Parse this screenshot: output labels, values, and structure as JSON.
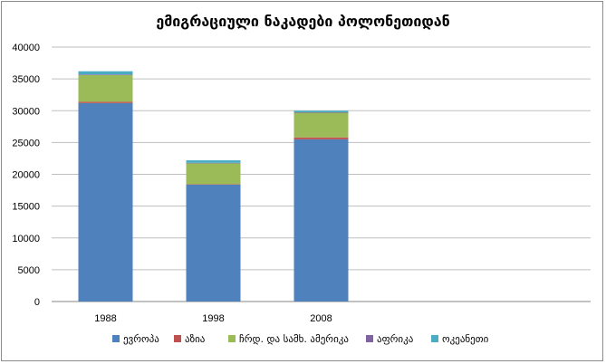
{
  "chart_data": {
    "type": "bar",
    "stacked": true,
    "title": "ემიგრაციული ნაკადები პოლონეთიდან",
    "xlabel": "",
    "ylabel": "",
    "categories": [
      "1988",
      "1998",
      "2008",
      "",
      ""
    ],
    "ylim": [
      0,
      40000
    ],
    "yticks": [
      0,
      5000,
      10000,
      15000,
      20000,
      25000,
      30000,
      35000,
      40000
    ],
    "grid": true,
    "legend_position": "bottom",
    "series": [
      {
        "name": "ევროპა",
        "color": "#4f81bd",
        "values": [
          31200,
          18400,
          25500,
          0,
          0
        ]
      },
      {
        "name": "აზია",
        "color": "#c0504d",
        "values": [
          200,
          50,
          300,
          0,
          0
        ]
      },
      {
        "name": "ჩრდ. და სამხ. ამერიკა",
        "color": "#9bbb59",
        "values": [
          4200,
          3300,
          3900,
          0,
          0
        ]
      },
      {
        "name": "აფრიკა",
        "color": "#8064a2",
        "values": [
          100,
          50,
          50,
          0,
          0
        ]
      },
      {
        "name": "ოკეანეთი",
        "color": "#4bacc6",
        "values": [
          500,
          400,
          250,
          0,
          0
        ]
      }
    ]
  }
}
